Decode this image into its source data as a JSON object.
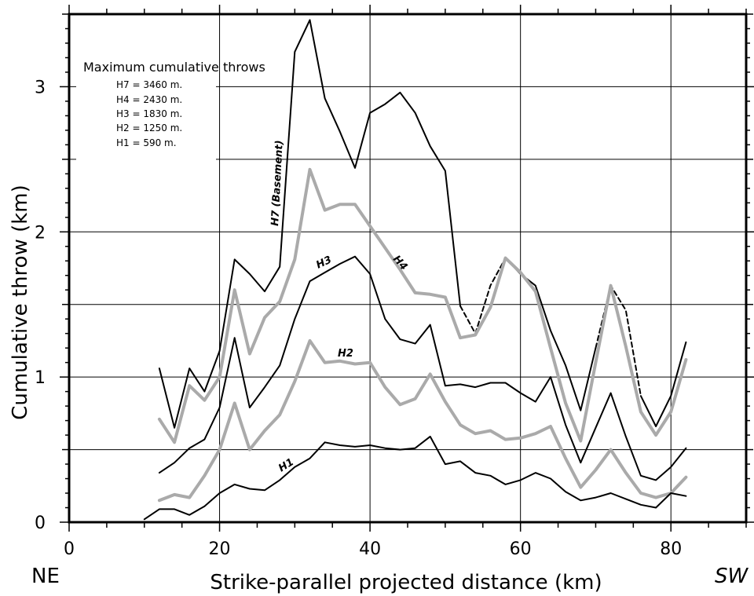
{
  "chart_data": {
    "type": "line",
    "xlabel": "Strike-parallel projected distance (km)",
    "ylabel": "Cumulative throw (km)",
    "xlim": [
      0,
      90
    ],
    "ylim": [
      0,
      3.5
    ],
    "x_ticks": [
      0,
      20,
      40,
      60,
      80
    ],
    "y_ticks": [
      0,
      1,
      2,
      3
    ],
    "grid": true,
    "end_labels": {
      "left": "NE",
      "right": "SW"
    },
    "legend": {
      "title": "Maximum cumulative throws",
      "items": [
        "H7 = 3460 m.",
        "H4 = 2430 m.",
        "H3 = 1830 m.",
        "H2 = 1250 m.",
        "H1 = 590 m."
      ]
    },
    "series": [
      {
        "name": "H7 (Basement)",
        "color": "#000000",
        "points": [
          [
            12,
            1.06
          ],
          [
            14,
            0.65
          ],
          [
            16,
            1.06
          ],
          [
            18,
            0.9
          ],
          [
            20,
            1.18
          ],
          [
            22,
            1.81
          ],
          [
            24,
            1.71
          ],
          [
            26,
            1.59
          ],
          [
            28,
            1.76
          ],
          [
            30,
            3.24
          ],
          [
            32,
            3.46
          ],
          [
            34,
            2.92
          ],
          [
            36,
            2.69
          ],
          [
            38,
            2.44
          ],
          [
            40,
            2.82
          ],
          [
            42,
            2.88
          ],
          [
            44,
            2.96
          ],
          [
            46,
            2.82
          ],
          [
            48,
            2.59
          ],
          [
            50,
            2.42
          ],
          [
            52,
            1.49
          ],
          [
            54,
            1.3
          ],
          [
            56,
            1.63
          ],
          [
            58,
            1.82
          ],
          [
            60,
            1.71
          ],
          [
            62,
            1.63
          ],
          [
            64,
            1.32
          ],
          [
            66,
            1.08
          ],
          [
            68,
            0.77
          ],
          [
            70,
            1.2
          ],
          [
            72,
            1.63
          ],
          [
            74,
            1.46
          ],
          [
            76,
            0.87
          ],
          [
            78,
            0.66
          ],
          [
            80,
            0.87
          ],
          [
            82,
            1.24
          ]
        ],
        "dashed_ranges": [
          [
            52,
            58
          ],
          [
            70,
            76
          ]
        ]
      },
      {
        "name": "H4",
        "color": "#aaaaaa",
        "points": [
          [
            12,
            0.71
          ],
          [
            14,
            0.55
          ],
          [
            16,
            0.94
          ],
          [
            18,
            0.84
          ],
          [
            20,
            1.0
          ],
          [
            22,
            1.6
          ],
          [
            24,
            1.16
          ],
          [
            26,
            1.41
          ],
          [
            28,
            1.52
          ],
          [
            30,
            1.81
          ],
          [
            32,
            2.43
          ],
          [
            34,
            2.15
          ],
          [
            36,
            2.19
          ],
          [
            38,
            2.19
          ],
          [
            40,
            2.04
          ],
          [
            42,
            1.89
          ],
          [
            44,
            1.74
          ],
          [
            46,
            1.58
          ],
          [
            48,
            1.57
          ],
          [
            50,
            1.55
          ],
          [
            52,
            1.27
          ],
          [
            54,
            1.29
          ],
          [
            56,
            1.48
          ],
          [
            58,
            1.82
          ],
          [
            60,
            1.72
          ],
          [
            62,
            1.59
          ],
          [
            64,
            1.2
          ],
          [
            66,
            0.82
          ],
          [
            68,
            0.56
          ],
          [
            70,
            1.1
          ],
          [
            72,
            1.63
          ],
          [
            74,
            1.21
          ],
          [
            76,
            0.76
          ],
          [
            78,
            0.6
          ],
          [
            80,
            0.76
          ],
          [
            82,
            1.12
          ]
        ]
      },
      {
        "name": "H3",
        "color": "#000000",
        "points": [
          [
            12,
            0.34
          ],
          [
            14,
            0.41
          ],
          [
            16,
            0.51
          ],
          [
            18,
            0.57
          ],
          [
            20,
            0.79
          ],
          [
            22,
            1.27
          ],
          [
            24,
            0.79
          ],
          [
            26,
            0.93
          ],
          [
            28,
            1.08
          ],
          [
            30,
            1.4
          ],
          [
            32,
            1.66
          ],
          [
            34,
            1.72
          ],
          [
            36,
            1.78
          ],
          [
            38,
            1.83
          ],
          [
            40,
            1.71
          ],
          [
            42,
            1.4
          ],
          [
            44,
            1.26
          ],
          [
            46,
            1.23
          ],
          [
            48,
            1.36
          ],
          [
            50,
            0.94
          ],
          [
            52,
            0.95
          ],
          [
            54,
            0.93
          ],
          [
            56,
            0.96
          ],
          [
            58,
            0.96
          ],
          [
            60,
            0.89
          ],
          [
            62,
            0.83
          ],
          [
            64,
            1.0
          ],
          [
            66,
            0.67
          ],
          [
            68,
            0.41
          ],
          [
            70,
            0.65
          ],
          [
            72,
            0.89
          ],
          [
            74,
            0.59
          ],
          [
            76,
            0.32
          ],
          [
            78,
            0.29
          ],
          [
            80,
            0.38
          ],
          [
            82,
            0.51
          ]
        ]
      },
      {
        "name": "H2",
        "color": "#aaaaaa",
        "points": [
          [
            12,
            0.15
          ],
          [
            14,
            0.19
          ],
          [
            16,
            0.17
          ],
          [
            18,
            0.32
          ],
          [
            20,
            0.5
          ],
          [
            22,
            0.82
          ],
          [
            24,
            0.5
          ],
          [
            26,
            0.63
          ],
          [
            28,
            0.74
          ],
          [
            30,
            0.97
          ],
          [
            32,
            1.25
          ],
          [
            34,
            1.1
          ],
          [
            36,
            1.11
          ],
          [
            38,
            1.09
          ],
          [
            40,
            1.1
          ],
          [
            42,
            0.93
          ],
          [
            44,
            0.81
          ],
          [
            46,
            0.85
          ],
          [
            48,
            1.02
          ],
          [
            50,
            0.83
          ],
          [
            52,
            0.67
          ],
          [
            54,
            0.61
          ],
          [
            56,
            0.63
          ],
          [
            58,
            0.57
          ],
          [
            60,
            0.58
          ],
          [
            62,
            0.61
          ],
          [
            64,
            0.66
          ],
          [
            66,
            0.44
          ],
          [
            68,
            0.24
          ],
          [
            70,
            0.36
          ],
          [
            72,
            0.5
          ],
          [
            74,
            0.34
          ],
          [
            76,
            0.2
          ],
          [
            78,
            0.17
          ],
          [
            80,
            0.2
          ],
          [
            82,
            0.31
          ]
        ]
      },
      {
        "name": "H1",
        "color": "#000000",
        "points": [
          [
            10,
            0.02
          ],
          [
            12,
            0.09
          ],
          [
            14,
            0.09
          ],
          [
            16,
            0.05
          ],
          [
            18,
            0.11
          ],
          [
            20,
            0.2
          ],
          [
            22,
            0.26
          ],
          [
            24,
            0.23
          ],
          [
            26,
            0.22
          ],
          [
            28,
            0.29
          ],
          [
            30,
            0.38
          ],
          [
            32,
            0.44
          ],
          [
            34,
            0.55
          ],
          [
            36,
            0.53
          ],
          [
            38,
            0.52
          ],
          [
            40,
            0.53
          ],
          [
            42,
            0.51
          ],
          [
            44,
            0.5
          ],
          [
            46,
            0.51
          ],
          [
            48,
            0.59
          ],
          [
            50,
            0.4
          ],
          [
            52,
            0.42
          ],
          [
            54,
            0.34
          ],
          [
            56,
            0.32
          ],
          [
            58,
            0.26
          ],
          [
            60,
            0.29
          ],
          [
            62,
            0.34
          ],
          [
            64,
            0.3
          ],
          [
            66,
            0.21
          ],
          [
            68,
            0.15
          ],
          [
            70,
            0.17
          ],
          [
            72,
            0.2
          ],
          [
            74,
            0.16
          ],
          [
            76,
            0.12
          ],
          [
            78,
            0.1
          ],
          [
            80,
            0.2
          ],
          [
            82,
            0.18
          ]
        ]
      }
    ]
  }
}
